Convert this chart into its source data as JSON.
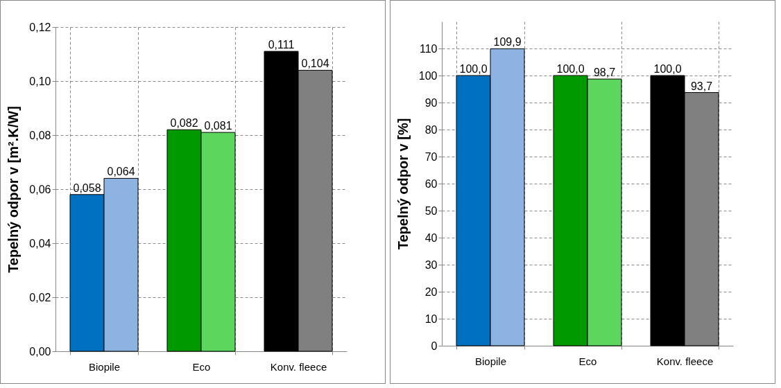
{
  "chart_data": [
    {
      "type": "bar",
      "ylabel": "Tepelný odpor v [m².K/W]",
      "categories": [
        "Biopile",
        "Eco",
        "Konv. fleece"
      ],
      "series": [
        {
          "colors": [
            "#0070c0",
            "#009900",
            "#000000"
          ],
          "values": [
            0.058,
            0.082,
            0.111
          ],
          "value_labels": [
            "0,058",
            "0,082",
            "0,111"
          ]
        },
        {
          "colors": [
            "#8db3e2",
            "#5cd65c",
            "#808080"
          ],
          "values": [
            0.064,
            0.081,
            0.104
          ],
          "value_labels": [
            "0,064",
            "0,081",
            "0,104"
          ]
        }
      ],
      "ylim": [
        0,
        0.12
      ],
      "yticks": [
        {
          "value": 0,
          "label": "0,00"
        },
        {
          "value": 0.02,
          "label": "0,02"
        },
        {
          "value": 0.04,
          "label": "0,04"
        },
        {
          "value": 0.06,
          "label": "0,06"
        },
        {
          "value": 0.08,
          "label": "0,08"
        },
        {
          "value": 0.1,
          "label": "0,10"
        },
        {
          "value": 0.12,
          "label": "0,12"
        }
      ],
      "grid": true
    },
    {
      "type": "bar",
      "ylabel": "Tepelný odpor v [%]",
      "categories": [
        "Biopile",
        "Eco",
        "Konv. fleece"
      ],
      "series": [
        {
          "colors": [
            "#0070c0",
            "#009900",
            "#000000"
          ],
          "values": [
            100.0,
            100.0,
            100.0
          ],
          "value_labels": [
            "100,0",
            "100,0",
            "100,0"
          ]
        },
        {
          "colors": [
            "#8db3e2",
            "#5cd65c",
            "#808080"
          ],
          "values": [
            109.9,
            98.7,
            93.7
          ],
          "value_labels": [
            "109,9",
            "98,7",
            "93,7"
          ]
        }
      ],
      "ylim": [
        0,
        120
      ],
      "yticks": [
        0,
        10,
        20,
        30,
        40,
        50,
        60,
        70,
        80,
        90,
        100,
        110
      ],
      "grid": true
    }
  ]
}
